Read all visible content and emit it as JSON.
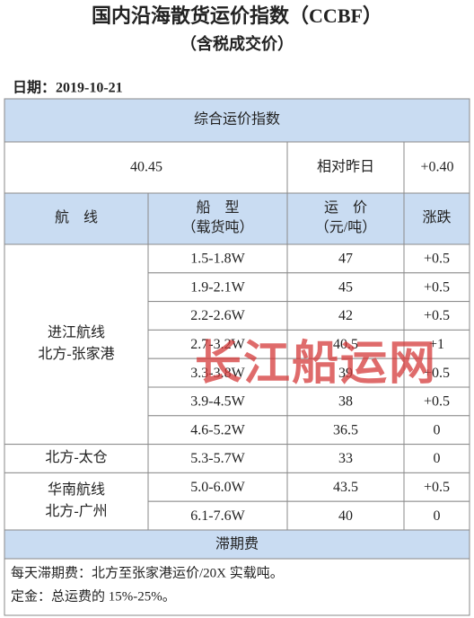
{
  "header": {
    "title": "国内沿海散货运价指数（CCBF）",
    "subtitle": "（含税成交价）"
  },
  "date": "日期：2019-10-21",
  "table": {
    "index_title": "综合运价指数",
    "index_value": "40.45",
    "compare_label": "相对昨日",
    "compare_change": "+0.40",
    "columns": [
      [
        "航　线"
      ],
      [
        "船　型",
        "（载货吨）"
      ],
      [
        "运　价",
        "（元/吨）"
      ],
      [
        "涨跌"
      ]
    ],
    "routes": [
      {
        "label": [
          "进江航线",
          "北方-张家港"
        ],
        "rows": [
          [
            "1.5-1.8W",
            "47",
            "+0.5"
          ],
          [
            "1.9-2.1W",
            "45",
            "+0.5"
          ],
          [
            "2.2-2.6W",
            "42",
            "+0.5"
          ],
          [
            "2.7-3.2W",
            "40.5",
            "+1"
          ],
          [
            "3.3-3.8W",
            "39",
            "+0.5"
          ],
          [
            "3.9-4.5W",
            "38",
            "+0.5"
          ],
          [
            "4.6-5.2W",
            "36.5",
            "0"
          ]
        ]
      },
      {
        "label": [
          "北方-太仓"
        ],
        "rows": [
          [
            "5.3-5.7W",
            "33",
            "0"
          ]
        ]
      },
      {
        "label": [
          "华南航线",
          "北方-广州"
        ],
        "rows": [
          [
            "5.0-6.0W",
            "43.5",
            "+0.5"
          ],
          [
            "6.1-7.6W",
            "40",
            "0"
          ]
        ]
      }
    ],
    "demurrage_title": "滞期费",
    "notes": [
      "每天滞期费：北方至张家港运价/20X 实载吨。",
      "定金：总运费的 15%-25%。"
    ]
  },
  "watermark": "长江船运网"
}
